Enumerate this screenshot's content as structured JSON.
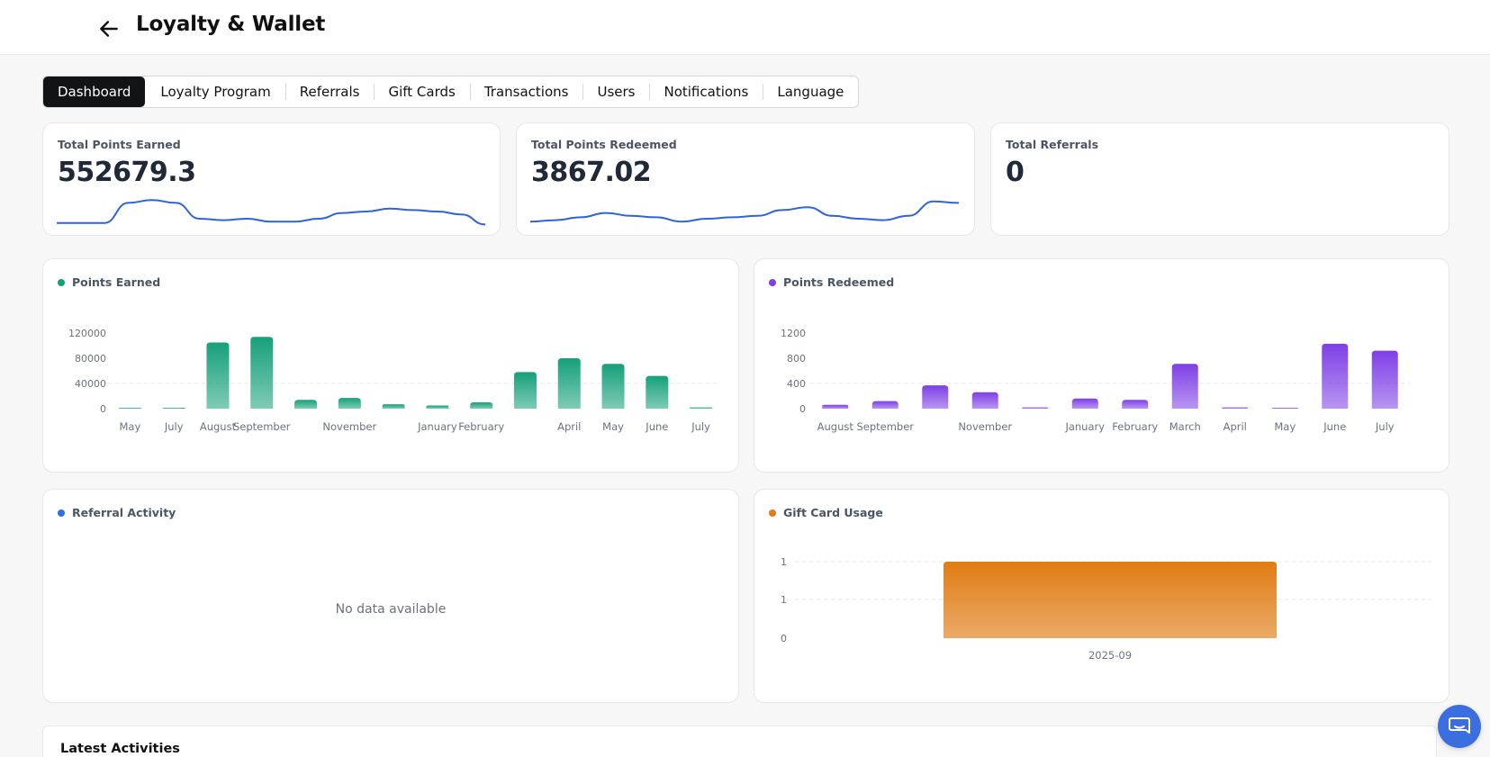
{
  "header": {
    "title": "Loyalty & Wallet",
    "back_icon": "arrow-left-icon"
  },
  "tabs": [
    {
      "label": "Dashboard",
      "active": true
    },
    {
      "label": "Loyalty Program"
    },
    {
      "label": "Referrals"
    },
    {
      "label": "Gift Cards"
    },
    {
      "label": "Transactions"
    },
    {
      "label": "Users"
    },
    {
      "label": "Notifications"
    },
    {
      "label": "Language"
    }
  ],
  "stats": {
    "points_earned": {
      "label": "Total Points Earned",
      "value": "552679.3"
    },
    "points_redeemed": {
      "label": "Total Points Redeemed",
      "value": "3867.02"
    },
    "referrals": {
      "label": "Total Referrals",
      "value": "0"
    }
  },
  "colors": {
    "earned": "#16a07a",
    "redeemed": "#7e3fe6",
    "referral": "#2f6fe4",
    "giftcard": "#e07c14",
    "sparkline": "#2f64d8"
  },
  "panels": {
    "earned": {
      "title": "Points Earned"
    },
    "redeemed": {
      "title": "Points Redeemed"
    },
    "referral": {
      "title": "Referral Activity",
      "empty": "No data available"
    },
    "giftcard": {
      "title": "Gift Card Usage"
    }
  },
  "latest": {
    "title": "Latest Activities"
  },
  "chat_icon": "chat-bubble-icon",
  "chart_data": [
    {
      "type": "bar",
      "title": "Points Earned",
      "categories": [
        "May",
        "July",
        "August",
        "September",
        "",
        "November",
        "",
        "January",
        "February",
        "",
        "April",
        "May",
        "June",
        "July"
      ],
      "values": [
        0,
        100,
        105000,
        114000,
        14000,
        17000,
        7000,
        5000,
        10000,
        58000,
        80000,
        71000,
        52000,
        2000
      ],
      "ylim": [
        0,
        120000
      ],
      "yticks": [
        "0",
        "40000",
        "80000",
        "120000"
      ]
    },
    {
      "type": "bar",
      "title": "Points Redeemed",
      "categories": [
        "August",
        "September",
        "",
        "November",
        "",
        "January",
        "February",
        "March",
        "April",
        "May",
        "June",
        "July"
      ],
      "values": [
        60,
        120,
        370,
        260,
        20,
        160,
        140,
        710,
        20,
        10,
        1030,
        920
      ],
      "ylim": [
        0,
        1200
      ],
      "yticks": [
        "0",
        "400",
        "800",
        "1200"
      ]
    },
    {
      "type": "bar",
      "title": "Gift Card Usage",
      "categories": [
        "2025-09"
      ],
      "values": [
        1
      ],
      "ylim": [
        0,
        1
      ],
      "yticks": [
        "0",
        "1",
        "1"
      ]
    },
    {
      "type": "line",
      "title": "Total Points Earned",
      "values": [
        0.1,
        0.1,
        0.1,
        0.8,
        0.9,
        0.8,
        0.25,
        0.2,
        0.25,
        0.15,
        0.15,
        0.25,
        0.45,
        0.5,
        0.6,
        0.55,
        0.5,
        0.4,
        0.05
      ]
    },
    {
      "type": "line",
      "title": "Total Points Redeemed",
      "values": [
        0.15,
        0.2,
        0.3,
        0.45,
        0.35,
        0.3,
        0.15,
        0.25,
        0.3,
        0.35,
        0.55,
        0.65,
        0.35,
        0.25,
        0.2,
        0.35,
        0.85,
        0.8
      ]
    }
  ]
}
